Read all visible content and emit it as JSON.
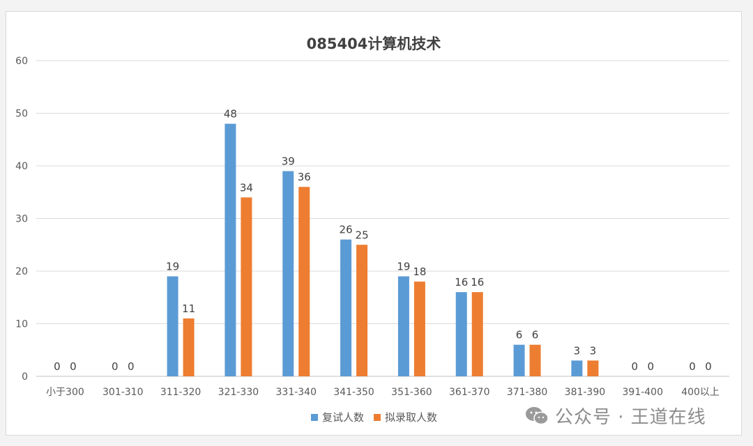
{
  "chart_data": {
    "type": "bar",
    "title": "085404计算机技术",
    "categories": [
      "小于300",
      "301-310",
      "311-320",
      "321-330",
      "331-340",
      "341-350",
      "351-360",
      "361-370",
      "371-380",
      "381-390",
      "391-400",
      "400以上"
    ],
    "series": [
      {
        "name": "复试人数",
        "color": "#5b9bd5",
        "values": [
          0,
          0,
          19,
          48,
          39,
          26,
          19,
          16,
          6,
          3,
          0,
          0
        ]
      },
      {
        "name": "拟录取人数",
        "color": "#ed7d31",
        "values": [
          0,
          0,
          11,
          34,
          36,
          25,
          18,
          16,
          6,
          3,
          0,
          0
        ]
      }
    ],
    "ylim": [
      0,
      60
    ],
    "yticks": [
      0,
      10,
      20,
      30,
      40,
      50,
      60
    ],
    "grid": true,
    "legend_position": "bottom"
  },
  "watermark": {
    "text": "公众号 · 王道在线",
    "icon": "wechat-icon"
  }
}
